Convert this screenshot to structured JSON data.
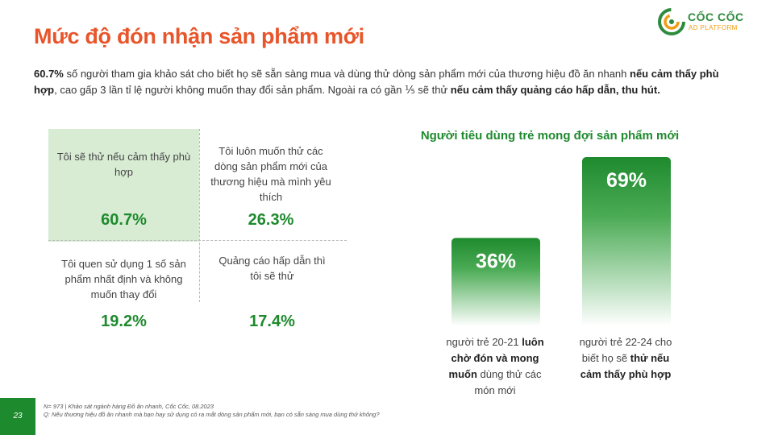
{
  "header": {
    "title": "Mức độ đón nhận sản phẩm mới",
    "logo_line1": "CỐC CỐC",
    "logo_line2": "AD PLATFORM"
  },
  "intro": {
    "p1": "60.7%",
    "p2": " số người tham gia khảo sát cho biết họ sẽ sẵn sàng mua và dùng thử dòng sản phẩm mới của thương hiệu đồ ăn nhanh ",
    "p3": "nếu cảm thấy phù hợp",
    "p4": ", cao gấp 3 lần tỉ lệ người không muốn thay đổi sản phẩm. Ngoài ra có gần ⅕ sẽ thử ",
    "p5": "nếu cảm thấy quảng cáo hấp dẫn, thu hút."
  },
  "grid": {
    "cells": [
      {
        "label": "Tôi sẽ thử nếu cảm thấy phù hợp",
        "value": "60.7%"
      },
      {
        "label": "Tôi luôn muốn thử các dòng sản phẩm mới của thương hiệu mà mình yêu thích",
        "value": "26.3%"
      },
      {
        "label": "Tôi quen sử dụng 1 số sản phẩm nhất định và không muốn thay đổi",
        "value": "19.2%"
      },
      {
        "label": "Quảng cáo hấp dẫn thì tôi sẽ thử",
        "value": "17.4%"
      }
    ]
  },
  "chart_data": {
    "type": "bar",
    "title": "Người tiêu dùng trẻ mong đợi sản phẩm mới",
    "categories": [
      "người trẻ 20-21 luôn chờ đón và mong muốn dùng thử các món mới",
      "người trẻ 22-24 cho biết họ sẽ thử nếu cảm thấy phù hợp"
    ],
    "values": [
      36,
      69
    ],
    "value_labels": [
      "36%",
      "69%"
    ],
    "colors": {
      "top": "#1e8a2e",
      "bottom": "#ffffff"
    },
    "ylim": [
      0,
      69
    ]
  },
  "bar_labels": [
    {
      "a": "người trẻ 20-21 ",
      "b": "luôn chờ đón và mong muốn",
      "c": " dùng thử các món mới"
    },
    {
      "a": "người trẻ 22-24 cho biết họ sẽ ",
      "b": "thử nếu cảm thấy phù hợp",
      "c": ""
    }
  ],
  "footer": {
    "note1": "N= 973 | Khảo sát ngành hàng Đồ ăn nhanh, Cốc Cốc, 08.2023",
    "note2": "Q: Nếu thương hiệu đồ ăn nhanh mà bạn hay sử dụng có ra mắt dòng sản phẩm mới, bạn có sẵn sàng mua dùng thử không?",
    "page": "23"
  },
  "colors": {
    "title": "#e8552a",
    "accent": "#1e8a2e",
    "highlight": "#d8ecd4"
  }
}
